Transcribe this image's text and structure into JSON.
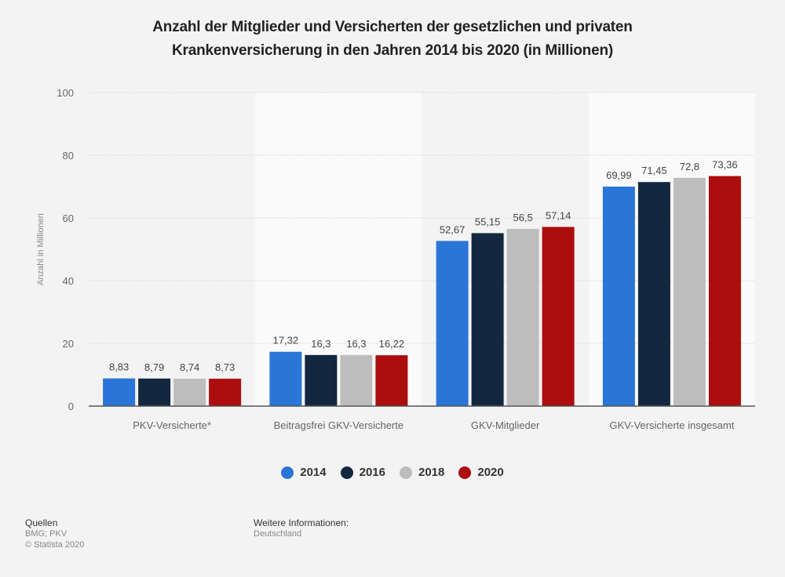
{
  "title_line1": "Anzahl der Mitglieder und Versicherten der gesetzlichen und privaten",
  "title_line2": "Krankenversicherung in den Jahren 2014 bis 2020 (in Millionen)",
  "chart_data": {
    "type": "bar",
    "title": "Anzahl der Mitglieder und Versicherten der gesetzlichen und privaten Krankenversicherung in den Jahren 2014 bis 2020 (in Millionen)",
    "xlabel": "",
    "ylabel": "Anzahl in Millionen",
    "ylim": [
      0,
      100
    ],
    "yticks": [
      0,
      20,
      40,
      60,
      80,
      100
    ],
    "grid": true,
    "legend_position": "bottom-center",
    "categories": [
      "PKV-Versicherte*",
      "Beitragsfrei GKV-Versicherte",
      "GKV-Mitglieder",
      "GKV-Versicherte insgesamt"
    ],
    "series": [
      {
        "name": "2014",
        "color": "#2a75d8",
        "values": [
          8.83,
          17.32,
          52.67,
          69.99
        ],
        "labels": [
          "8,83",
          "17,32",
          "52,67",
          "69,99"
        ]
      },
      {
        "name": "2016",
        "color": "#132840",
        "values": [
          8.79,
          16.3,
          55.15,
          71.45
        ],
        "labels": [
          "8,79",
          "16,3",
          "55,15",
          "71,45"
        ]
      },
      {
        "name": "2018",
        "color": "#bdbdbd",
        "values": [
          8.74,
          16.3,
          56.5,
          72.8
        ],
        "labels": [
          "8,74",
          "16,3",
          "56,5",
          "72,8"
        ]
      },
      {
        "name": "2020",
        "color": "#ac0d0d",
        "values": [
          8.73,
          16.22,
          57.14,
          73.36
        ],
        "labels": [
          "8,73",
          "16,22",
          "57,14",
          "73,36"
        ]
      }
    ]
  },
  "footer": {
    "sources_label": "Quellen",
    "sources": "BMG; PKV",
    "copyright": "© Statista 2020",
    "more_info_label": "Weitere Informationen:",
    "region": "Deutschland"
  }
}
